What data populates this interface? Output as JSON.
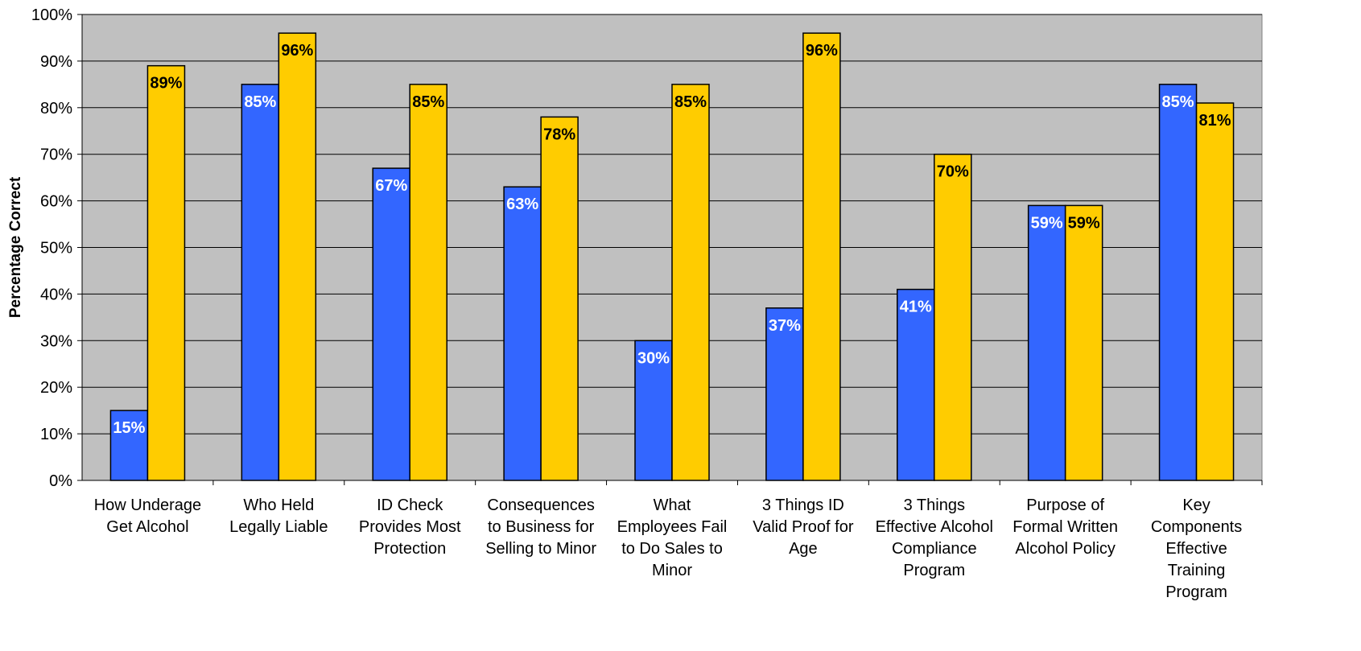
{
  "chart_data": {
    "type": "bar",
    "title": "",
    "xlabel": "",
    "ylabel": "Percentage Correct",
    "ylim": [
      0,
      100
    ],
    "y_ticks": [
      "0%",
      "10%",
      "20%",
      "30%",
      "40%",
      "50%",
      "60%",
      "70%",
      "80%",
      "90%",
      "100%"
    ],
    "grid": true,
    "legend": "none",
    "plot_background": "#C0C0C0",
    "categories": [
      [
        "How Underage",
        "Get Alcohol"
      ],
      [
        "Who Held",
        "Legally Liable"
      ],
      [
        "ID Check",
        "Provides Most",
        "Protection"
      ],
      [
        "Consequences",
        "to Business for",
        "Selling to Minor"
      ],
      [
        "What",
        "Employees Fail",
        "to Do Sales to",
        "Minor"
      ],
      [
        "3 Things ID",
        "Valid Proof for",
        "Age"
      ],
      [
        "3 Things",
        "Effective Alcohol",
        "Compliance",
        "Program"
      ],
      [
        "Purpose of",
        "Formal Written",
        "Alcohol Policy"
      ],
      [
        "Key",
        "Components",
        "Effective",
        "Training",
        "Program"
      ]
    ],
    "series": [
      {
        "color": "#3366FF",
        "label_color": "#FFFFFF",
        "values": [
          15,
          85,
          67,
          63,
          30,
          37,
          41,
          59,
          85
        ],
        "labels": [
          "15%",
          "85%",
          "67%",
          "63%",
          "30%",
          "37%",
          "41%",
          "59%",
          "85%"
        ]
      },
      {
        "color": "#FFCC00",
        "label_color": "#000000",
        "values": [
          89,
          96,
          85,
          78,
          85,
          96,
          70,
          59,
          81
        ],
        "labels": [
          "89%",
          "96%",
          "85%",
          "78%",
          "85%",
          "96%",
          "70%",
          "59%",
          "81%"
        ]
      }
    ]
  }
}
